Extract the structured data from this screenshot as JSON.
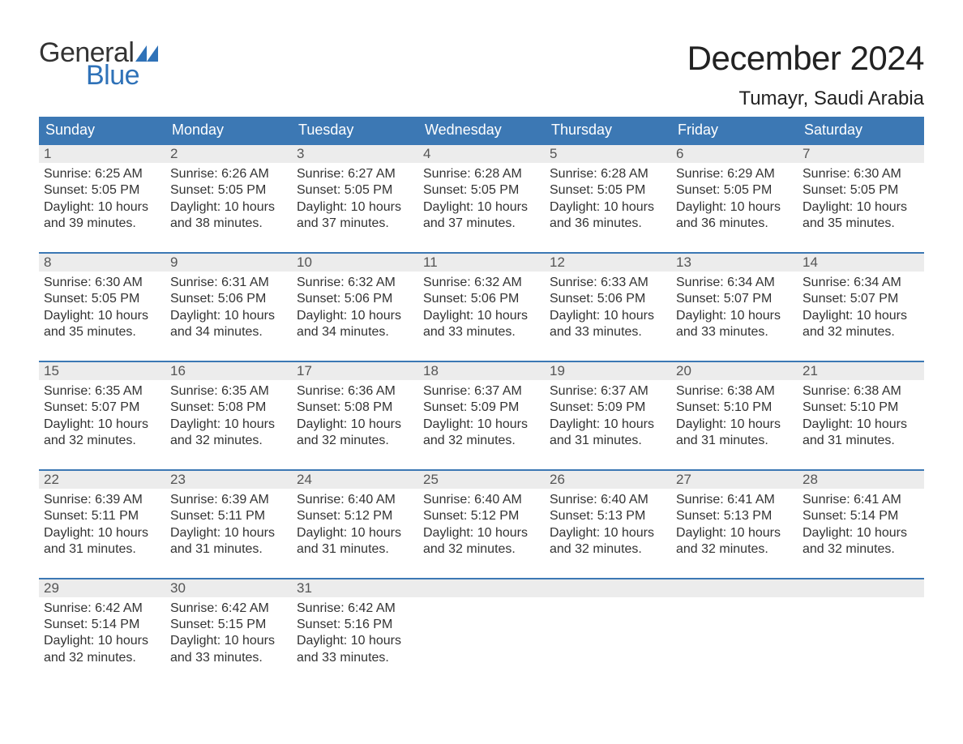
{
  "brand": {
    "word1": "General",
    "word2": "Blue",
    "text_color": "#333333",
    "accent_color": "#2f72b8"
  },
  "title": "December 2024",
  "location": "Tumayr, Saudi Arabia",
  "colors": {
    "header_bg": "#3c78b4",
    "header_text": "#ffffff",
    "daynum_bg": "#ececec",
    "daynum_text": "#555555",
    "body_text": "#333333",
    "week_border": "#3c78b4",
    "page_bg": "#ffffff"
  },
  "typography": {
    "month_title_pt": 42,
    "location_pt": 24,
    "weekday_pt": 18,
    "daynum_pt": 17,
    "body_pt": 16,
    "logo_pt": 34
  },
  "calendar": {
    "type": "calendar-grid",
    "columns": 7,
    "weekdays": [
      "Sunday",
      "Monday",
      "Tuesday",
      "Wednesday",
      "Thursday",
      "Friday",
      "Saturday"
    ],
    "weeks": [
      [
        {
          "n": "1",
          "sunrise": "Sunrise: 6:25 AM",
          "sunset": "Sunset: 5:05 PM",
          "daylight": "Daylight: 10 hours and 39 minutes."
        },
        {
          "n": "2",
          "sunrise": "Sunrise: 6:26 AM",
          "sunset": "Sunset: 5:05 PM",
          "daylight": "Daylight: 10 hours and 38 minutes."
        },
        {
          "n": "3",
          "sunrise": "Sunrise: 6:27 AM",
          "sunset": "Sunset: 5:05 PM",
          "daylight": "Daylight: 10 hours and 37 minutes."
        },
        {
          "n": "4",
          "sunrise": "Sunrise: 6:28 AM",
          "sunset": "Sunset: 5:05 PM",
          "daylight": "Daylight: 10 hours and 37 minutes."
        },
        {
          "n": "5",
          "sunrise": "Sunrise: 6:28 AM",
          "sunset": "Sunset: 5:05 PM",
          "daylight": "Daylight: 10 hours and 36 minutes."
        },
        {
          "n": "6",
          "sunrise": "Sunrise: 6:29 AM",
          "sunset": "Sunset: 5:05 PM",
          "daylight": "Daylight: 10 hours and 36 minutes."
        },
        {
          "n": "7",
          "sunrise": "Sunrise: 6:30 AM",
          "sunset": "Sunset: 5:05 PM",
          "daylight": "Daylight: 10 hours and 35 minutes."
        }
      ],
      [
        {
          "n": "8",
          "sunrise": "Sunrise: 6:30 AM",
          "sunset": "Sunset: 5:05 PM",
          "daylight": "Daylight: 10 hours and 35 minutes."
        },
        {
          "n": "9",
          "sunrise": "Sunrise: 6:31 AM",
          "sunset": "Sunset: 5:06 PM",
          "daylight": "Daylight: 10 hours and 34 minutes."
        },
        {
          "n": "10",
          "sunrise": "Sunrise: 6:32 AM",
          "sunset": "Sunset: 5:06 PM",
          "daylight": "Daylight: 10 hours and 34 minutes."
        },
        {
          "n": "11",
          "sunrise": "Sunrise: 6:32 AM",
          "sunset": "Sunset: 5:06 PM",
          "daylight": "Daylight: 10 hours and 33 minutes."
        },
        {
          "n": "12",
          "sunrise": "Sunrise: 6:33 AM",
          "sunset": "Sunset: 5:06 PM",
          "daylight": "Daylight: 10 hours and 33 minutes."
        },
        {
          "n": "13",
          "sunrise": "Sunrise: 6:34 AM",
          "sunset": "Sunset: 5:07 PM",
          "daylight": "Daylight: 10 hours and 33 minutes."
        },
        {
          "n": "14",
          "sunrise": "Sunrise: 6:34 AM",
          "sunset": "Sunset: 5:07 PM",
          "daylight": "Daylight: 10 hours and 32 minutes."
        }
      ],
      [
        {
          "n": "15",
          "sunrise": "Sunrise: 6:35 AM",
          "sunset": "Sunset: 5:07 PM",
          "daylight": "Daylight: 10 hours and 32 minutes."
        },
        {
          "n": "16",
          "sunrise": "Sunrise: 6:35 AM",
          "sunset": "Sunset: 5:08 PM",
          "daylight": "Daylight: 10 hours and 32 minutes."
        },
        {
          "n": "17",
          "sunrise": "Sunrise: 6:36 AM",
          "sunset": "Sunset: 5:08 PM",
          "daylight": "Daylight: 10 hours and 32 minutes."
        },
        {
          "n": "18",
          "sunrise": "Sunrise: 6:37 AM",
          "sunset": "Sunset: 5:09 PM",
          "daylight": "Daylight: 10 hours and 32 minutes."
        },
        {
          "n": "19",
          "sunrise": "Sunrise: 6:37 AM",
          "sunset": "Sunset: 5:09 PM",
          "daylight": "Daylight: 10 hours and 31 minutes."
        },
        {
          "n": "20",
          "sunrise": "Sunrise: 6:38 AM",
          "sunset": "Sunset: 5:10 PM",
          "daylight": "Daylight: 10 hours and 31 minutes."
        },
        {
          "n": "21",
          "sunrise": "Sunrise: 6:38 AM",
          "sunset": "Sunset: 5:10 PM",
          "daylight": "Daylight: 10 hours and 31 minutes."
        }
      ],
      [
        {
          "n": "22",
          "sunrise": "Sunrise: 6:39 AM",
          "sunset": "Sunset: 5:11 PM",
          "daylight": "Daylight: 10 hours and 31 minutes."
        },
        {
          "n": "23",
          "sunrise": "Sunrise: 6:39 AM",
          "sunset": "Sunset: 5:11 PM",
          "daylight": "Daylight: 10 hours and 31 minutes."
        },
        {
          "n": "24",
          "sunrise": "Sunrise: 6:40 AM",
          "sunset": "Sunset: 5:12 PM",
          "daylight": "Daylight: 10 hours and 31 minutes."
        },
        {
          "n": "25",
          "sunrise": "Sunrise: 6:40 AM",
          "sunset": "Sunset: 5:12 PM",
          "daylight": "Daylight: 10 hours and 32 minutes."
        },
        {
          "n": "26",
          "sunrise": "Sunrise: 6:40 AM",
          "sunset": "Sunset: 5:13 PM",
          "daylight": "Daylight: 10 hours and 32 minutes."
        },
        {
          "n": "27",
          "sunrise": "Sunrise: 6:41 AM",
          "sunset": "Sunset: 5:13 PM",
          "daylight": "Daylight: 10 hours and 32 minutes."
        },
        {
          "n": "28",
          "sunrise": "Sunrise: 6:41 AM",
          "sunset": "Sunset: 5:14 PM",
          "daylight": "Daylight: 10 hours and 32 minutes."
        }
      ],
      [
        {
          "n": "29",
          "sunrise": "Sunrise: 6:42 AM",
          "sunset": "Sunset: 5:14 PM",
          "daylight": "Daylight: 10 hours and 32 minutes."
        },
        {
          "n": "30",
          "sunrise": "Sunrise: 6:42 AM",
          "sunset": "Sunset: 5:15 PM",
          "daylight": "Daylight: 10 hours and 33 minutes."
        },
        {
          "n": "31",
          "sunrise": "Sunrise: 6:42 AM",
          "sunset": "Sunset: 5:16 PM",
          "daylight": "Daylight: 10 hours and 33 minutes."
        },
        null,
        null,
        null,
        null
      ]
    ]
  }
}
